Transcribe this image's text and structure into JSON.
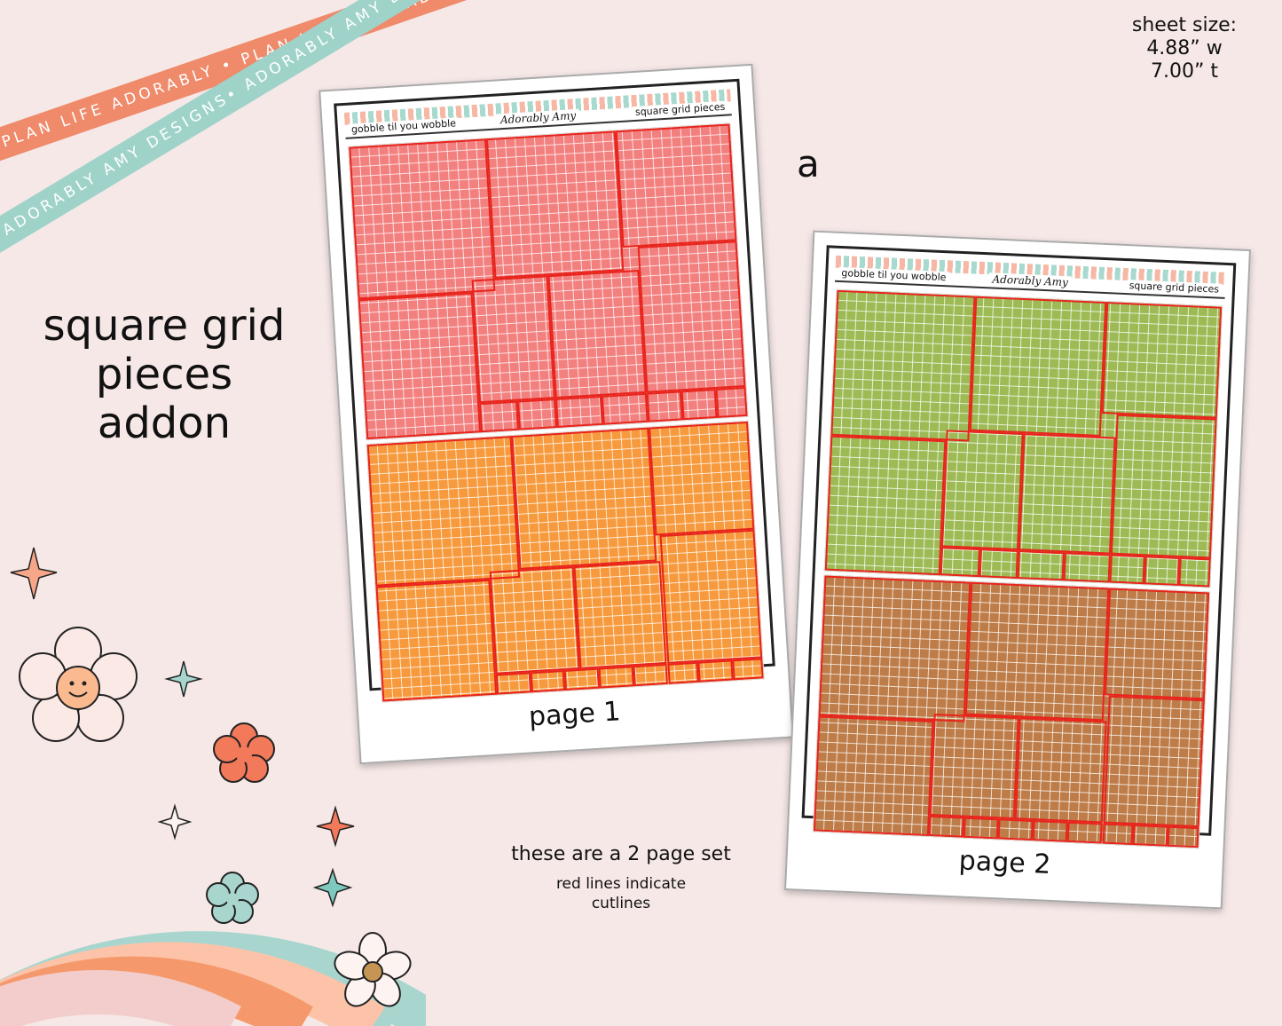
{
  "ribbons": {
    "ribbon1": "PLAN LIFE ADORABLY • PLAN LIFE ADORABLY • PLAN LIFE ADORABLY •",
    "ribbon2": "ADORABLY AMY DESIGNS• ADORABLY AMY DESIGNS• ADORABLY AMY DESIGNS•"
  },
  "title": {
    "line1": "square grid",
    "line2": "pieces",
    "line3": "addon"
  },
  "sheet_size": {
    "line1": "sheet size:",
    "line2": "4.88” w",
    "line3": "7.00” t"
  },
  "variant_label": "a",
  "page1": {
    "header_left": "gobble til you wobble",
    "header_logo": "Adorably Amy",
    "header_right": "square grid pieces",
    "label": "page 1",
    "colors": {
      "top": "#f2807f",
      "bottom": "#f79a3d"
    }
  },
  "page2": {
    "header_left": "gobble til you wobble",
    "header_logo": "Adorably Amy",
    "header_right": "square grid pieces",
    "label": "page 2",
    "colors": {
      "top": "#9dba55",
      "bottom": "#bd7c48"
    }
  },
  "notes": {
    "set": "these are a 2 page set",
    "cutlines1": "red lines indicate",
    "cutlines2": "cutlines"
  },
  "palette": {
    "background": "#f6e8e7",
    "cutline": "#e8241c",
    "rainbow": [
      "#a8d6cf",
      "#fcc3a8",
      "#f5996c",
      "#f2cdcb"
    ]
  }
}
